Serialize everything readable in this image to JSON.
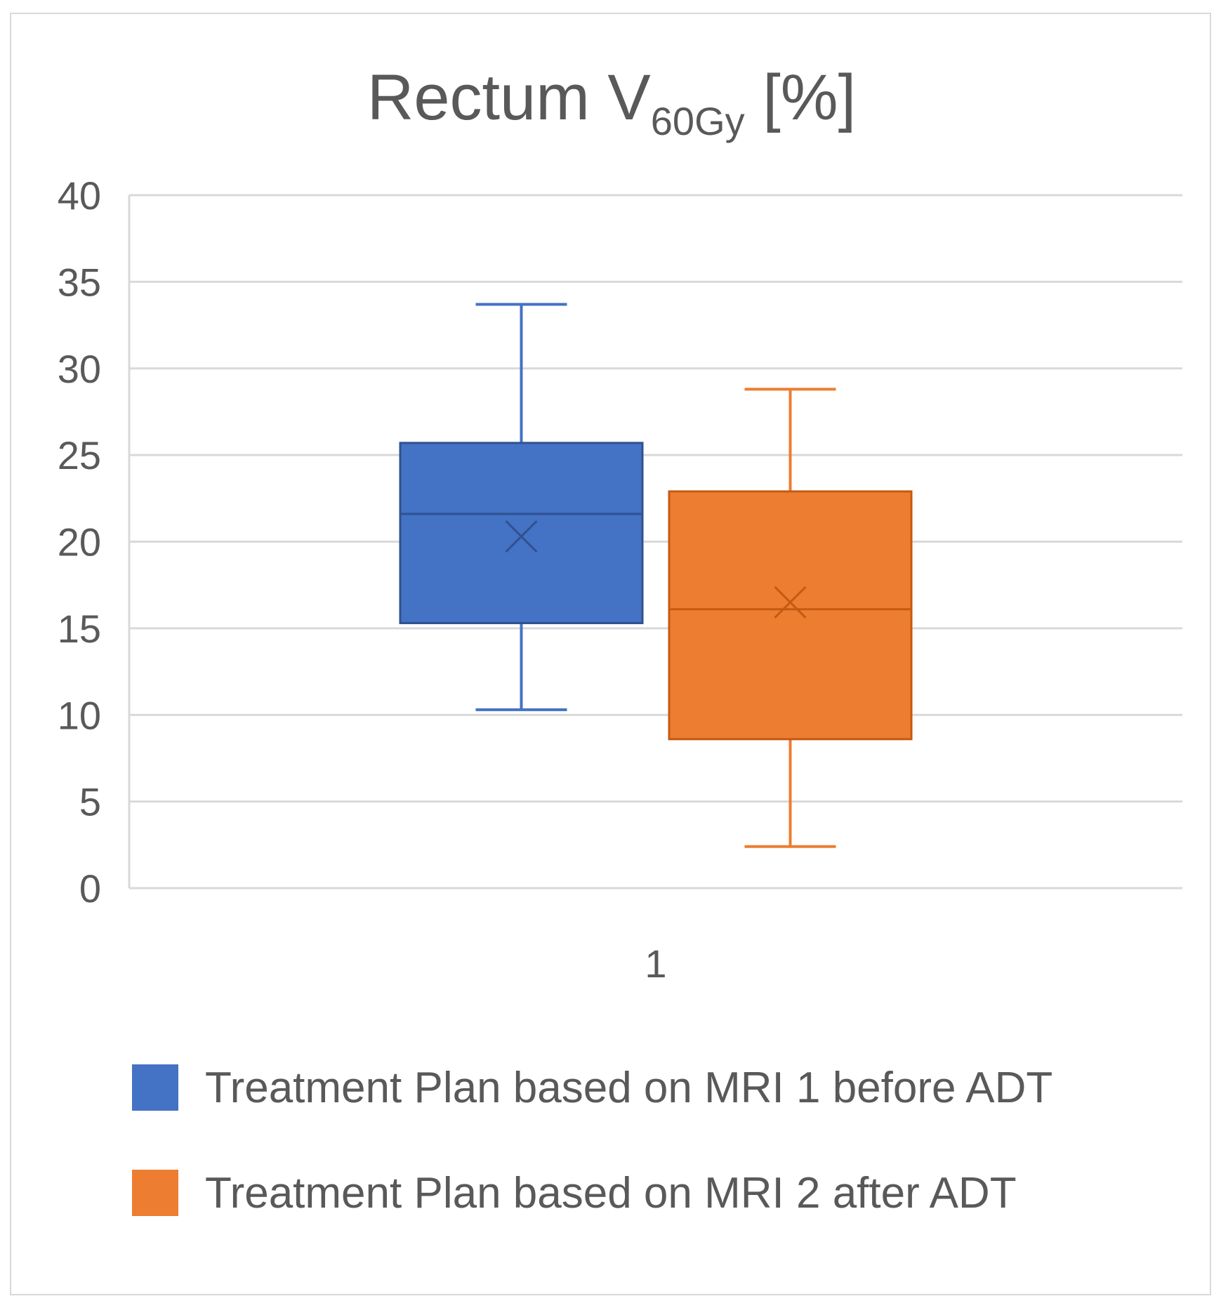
{
  "chart_data": {
    "type": "box",
    "title": {
      "main": "Rectum V",
      "subscript": "60Gy",
      "suffix": " [%]"
    },
    "xlabel": "",
    "ylabel": "",
    "categories": [
      "1"
    ],
    "ylim": [
      0,
      40
    ],
    "yticks": [
      "0",
      "5",
      "10",
      "15",
      "20",
      "25",
      "30",
      "35",
      "40"
    ],
    "grid": true,
    "legend_position": "bottom",
    "series": [
      {
        "name": "Treatment Plan based on MRI 1 before ADT",
        "color": "#4472c4",
        "min": 10.3,
        "q1": 15.3,
        "median": 21.6,
        "mean": 20.3,
        "q3": 25.7,
        "max": 33.7
      },
      {
        "name": "Treatment Plan based on MRI 2 after ADT",
        "color": "#ed7d31",
        "min": 2.4,
        "q1": 8.6,
        "median": 16.1,
        "mean": 16.5,
        "q3": 22.9,
        "max": 28.8
      }
    ]
  }
}
